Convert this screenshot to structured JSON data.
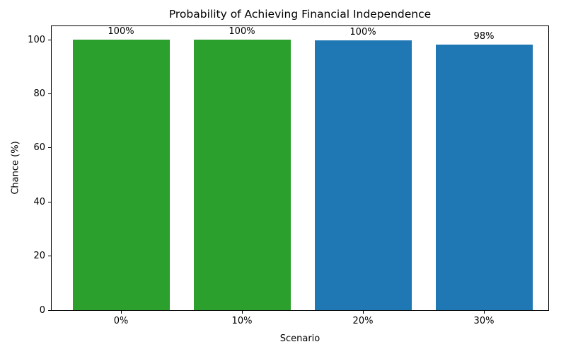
{
  "chart_data": {
    "type": "bar",
    "title": "Probability of Achieving Financial Independence",
    "xlabel": "Scenario",
    "ylabel": "Chance (%)",
    "categories": [
      "0%",
      "10%",
      "20%",
      "30%"
    ],
    "values": [
      100,
      100,
      99.7,
      98.3
    ],
    "bar_labels": [
      "100%",
      "100%",
      "100%",
      "98%"
    ],
    "bar_colors": [
      "#2ca02c",
      "#2ca02c",
      "#1f77b4",
      "#1f77b4"
    ],
    "ylim": [
      0,
      105
    ],
    "yticks": [
      0,
      20,
      40,
      60,
      80,
      100
    ],
    "grid": false,
    "legend_position": "none",
    "background_color": "#ffffff",
    "text_color": "#000000",
    "spine_color": "#000000"
  }
}
